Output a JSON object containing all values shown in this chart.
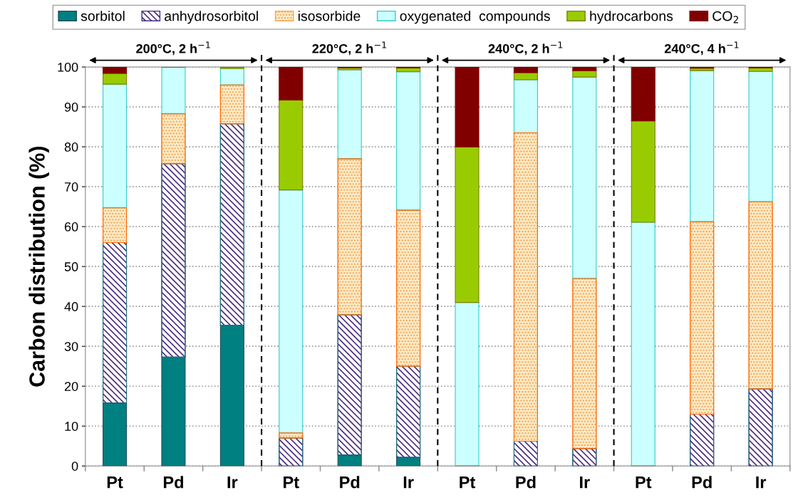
{
  "chart_data": {
    "type": "bar",
    "stacked": true,
    "ylabel": "Carbon distribution (%)",
    "categories": [
      "Pt",
      "Pd",
      "Ir",
      "Pt",
      "Pd",
      "Ir",
      "Pt",
      "Pd",
      "Ir",
      "Pt",
      "Pd",
      "Ir"
    ],
    "series": [
      {
        "name": "sorbitol",
        "color": "#008080",
        "values": [
          15.8,
          27.3,
          35.3,
          0,
          2.8,
          2.2,
          0,
          0,
          0,
          0,
          0,
          0
        ]
      },
      {
        "name": "anhydrosorbitol",
        "color": "#4b2d7f",
        "values": [
          40.2,
          48.5,
          50.5,
          7.0,
          35.1,
          22.8,
          0,
          6.2,
          4.4,
          0,
          13.0,
          19.3
        ]
      },
      {
        "name": "isosorbide",
        "color": "#f5a85a",
        "values": [
          8.7,
          12.5,
          9.7,
          1.3,
          39.1,
          39.1,
          0,
          77.3,
          42.6,
          0,
          48.2,
          46.9
        ]
      },
      {
        "name": "oxygenated  compounds",
        "color": "#ccffff",
        "values": [
          31.0,
          11.7,
          4.1,
          60.9,
          22.3,
          34.7,
          41.0,
          13.3,
          50.5,
          61.1,
          37.9,
          32.7
        ]
      },
      {
        "name": "hydrocarbons",
        "color": "#99cc00",
        "values": [
          2.7,
          0,
          0.4,
          22.5,
          0.5,
          1.0,
          39.0,
          1.8,
          1.6,
          25.4,
          0.6,
          0.9
        ]
      },
      {
        "name": "CO$_{2}$",
        "color": "#800000",
        "values": [
          1.6,
          0,
          0,
          8.3,
          0.2,
          0.2,
          20.0,
          1.4,
          0.9,
          13.5,
          0.3,
          0.2
        ]
      }
    ],
    "ylim": [
      0,
      100
    ],
    "yticks": [
      0,
      10,
      20,
      30,
      40,
      50,
      60,
      70,
      80,
      90,
      100
    ],
    "grid": "y",
    "legend": "top",
    "annotations": [
      "200°C, 2 h$^{−1}$",
      "220°C, 2 h$^{−1}$",
      "240°C, 2 h$^{−1}$",
      "240°C, 4 h$^{−1}$"
    ]
  }
}
